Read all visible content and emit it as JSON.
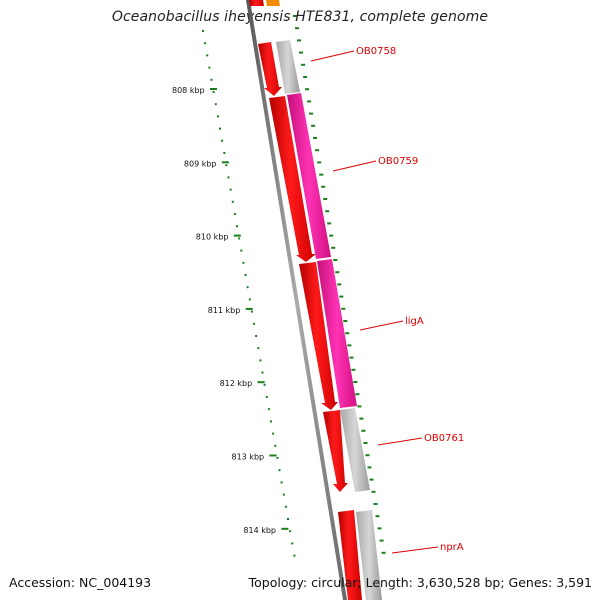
{
  "title": "Oceanobacillus iheyensis HTE831, complete genome",
  "footer": {
    "accession_label": "Accession:",
    "accession": "NC_004193",
    "topology": "Topology: circular; Length: 3,630,528 bp; Genes: 3,591"
  },
  "colors": {
    "forward_gene": "#ff0000",
    "reverse_gene": "#c0c0c0",
    "highlight_gene": "#ff1493",
    "label": "#dd0000",
    "tick": "#1a7f1a",
    "backbone": "#777777"
  },
  "kbp_ticks": [
    "808 kbp",
    "809 kbp",
    "810 kbp",
    "811 kbp",
    "812 kbp",
    "813 kbp",
    "814 kbp"
  ],
  "gene_labels": [
    "OB0758",
    "OB0759",
    "ligA",
    "OB0761",
    "nprA"
  ]
}
